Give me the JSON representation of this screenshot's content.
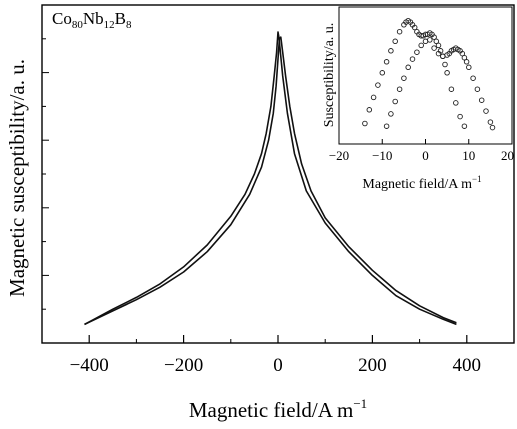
{
  "chart_data": [
    {
      "type": "line",
      "composition_parts": [
        "Co",
        "80",
        "Nb",
        "12",
        "B",
        "8"
      ],
      "xlabel": "Magnetic field/A m",
      "xlabel_sup": "−1",
      "ylabel": "Magnetic susceptibility/a. u.",
      "xlim": [
        -500,
        500
      ],
      "ylim": [
        0,
        1
      ],
      "xticks": [
        -400,
        -200,
        0,
        200,
        400
      ],
      "xtick_labels": [
        "−400",
        "−200",
        "0",
        "200",
        "400"
      ],
      "y_tick_labels_shown": false,
      "grid": false,
      "series": [
        {
          "x": [
            -410,
            -350,
            -300,
            -250,
            -200,
            -150,
            -100,
            -70,
            -50,
            -35,
            -25,
            -15,
            -8,
            -3,
            0,
            2,
            5,
            10,
            20,
            35,
            60,
            100,
            150,
            200,
            250,
            300,
            350,
            378
          ],
          "y": [
            0.055,
            0.1,
            0.135,
            0.175,
            0.225,
            0.29,
            0.375,
            0.44,
            0.5,
            0.56,
            0.62,
            0.7,
            0.79,
            0.86,
            0.92,
            0.905,
            0.86,
            0.79,
            0.68,
            0.56,
            0.45,
            0.355,
            0.27,
            0.2,
            0.14,
            0.1,
            0.07,
            0.055
          ]
        },
        {
          "x": [
            -410,
            -350,
            -300,
            -250,
            -200,
            -150,
            -100,
            -60,
            -35,
            -20,
            -10,
            -4,
            0,
            3,
            6,
            10,
            16,
            25,
            35,
            50,
            70,
            100,
            150,
            200,
            250,
            300,
            350,
            378
          ],
          "y": [
            0.055,
            0.095,
            0.128,
            0.165,
            0.21,
            0.27,
            0.35,
            0.44,
            0.52,
            0.6,
            0.68,
            0.76,
            0.84,
            0.9,
            0.905,
            0.86,
            0.79,
            0.7,
            0.62,
            0.53,
            0.45,
            0.37,
            0.285,
            0.215,
            0.155,
            0.11,
            0.075,
            0.06
          ]
        }
      ]
    },
    {
      "type": "scatter",
      "xlabel": "Magnetic field/A m",
      "xlabel_sup": "−1",
      "ylabel": "Susceptibility/a. u.",
      "xlim": [
        -20,
        20
      ],
      "ylim": [
        0,
        1
      ],
      "xticks": [
        -20,
        -10,
        0,
        10,
        20
      ],
      "xtick_labels": [
        "−20",
        "−10",
        "0",
        "10",
        "20"
      ],
      "marker": "open-circle",
      "series": [
        {
          "x": [
            -14,
            -13,
            -12,
            -11,
            -10,
            -9,
            -8,
            -7,
            -6,
            -5,
            -4.5,
            -4,
            -3.5,
            -3,
            -2.5,
            -2,
            -1.5,
            -1,
            -0.5,
            0,
            0.5,
            1,
            1.5,
            2,
            2.5,
            3,
            3.5,
            4,
            4.5,
            5,
            6,
            7,
            8,
            9
          ],
          "y": [
            0.15,
            0.25,
            0.34,
            0.43,
            0.52,
            0.6,
            0.68,
            0.75,
            0.82,
            0.87,
            0.89,
            0.9,
            0.89,
            0.87,
            0.85,
            0.82,
            0.8,
            0.79,
            0.79,
            0.8,
            0.8,
            0.81,
            0.8,
            0.78,
            0.75,
            0.72,
            0.68,
            0.64,
            0.58,
            0.52,
            0.4,
            0.3,
            0.2,
            0.13
          ]
        },
        {
          "x": [
            -9,
            -8,
            -7,
            -6,
            -5,
            -4,
            -3,
            -2,
            -1,
            0,
            1,
            2,
            3,
            4,
            5,
            5.5,
            6,
            6.5,
            7,
            7.5,
            8,
            8.5,
            9,
            9.5,
            10,
            11,
            12,
            13,
            14,
            15,
            15.5
          ],
          "y": [
            0.13,
            0.22,
            0.31,
            0.4,
            0.48,
            0.56,
            0.62,
            0.67,
            0.72,
            0.75,
            0.76,
            0.7,
            0.66,
            0.64,
            0.65,
            0.66,
            0.68,
            0.69,
            0.7,
            0.69,
            0.68,
            0.66,
            0.63,
            0.6,
            0.56,
            0.48,
            0.4,
            0.32,
            0.24,
            0.16,
            0.12
          ]
        }
      ]
    }
  ]
}
